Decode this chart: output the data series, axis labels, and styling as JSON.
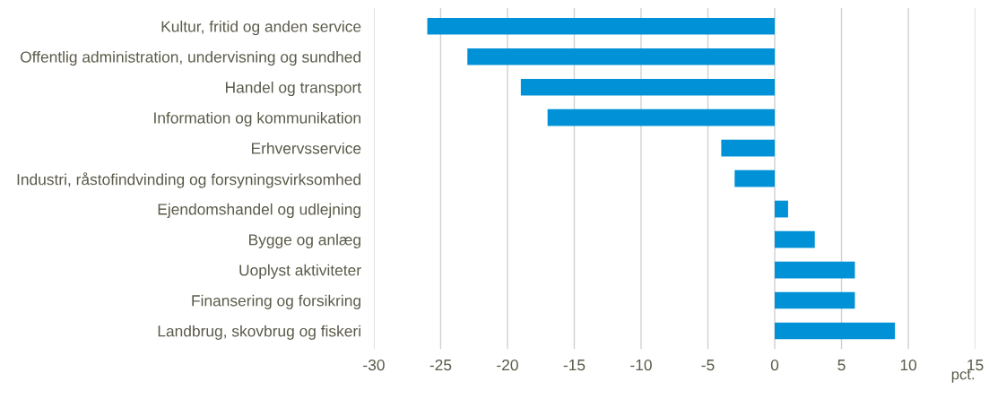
{
  "chart_data": {
    "type": "bar",
    "orientation": "horizontal",
    "categories": [
      "Kultur, fritid og anden service",
      "Offentlig administration, undervisning og sundhed",
      "Handel og transport",
      "Information og kommunikation",
      "Erhvervsservice",
      "Industri, råstofindvinding og forsyningsvirksomhed",
      "Ejendomshandel og udlejning",
      "Bygge og anlæg",
      "Uoplyst aktiviteter",
      "Finansering og forsikring",
      "Landbrug, skovbrug og fiskeri"
    ],
    "values": [
      -26,
      -23,
      -19,
      -17,
      -4,
      -3,
      1,
      3,
      6,
      6,
      9
    ],
    "color": "#0091d6",
    "xlim": [
      -30,
      15
    ],
    "xticks": [
      -30,
      -25,
      -20,
      -15,
      -10,
      -5,
      0,
      5,
      10,
      15
    ],
    "xlabel": "pct.",
    "grid": "x"
  }
}
